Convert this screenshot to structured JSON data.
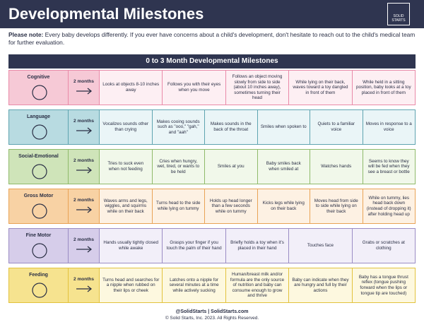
{
  "header": {
    "title": "Developmental Milestones",
    "logo_top": "SOLID",
    "logo_bottom": "STARTS"
  },
  "note": {
    "label": "Please note:",
    "text": "Every baby develops differently. If you ever have concerns about a child's development, don't hesitate to reach out to the child's medical team for further evaluation."
  },
  "table": {
    "title": "0 to 3 Month Developmental Milestones",
    "rows": [
      {
        "category": "Cognitive",
        "age": "2 months",
        "cells": [
          "Looks at objects 8-10 inches away",
          "Follows you with their eyes when you move",
          "Follows an object moving slowly from side to side (about 10 inches away), sometimes turning their head",
          "While lying on their back, waves toward a toy dangled in front of them",
          "While held in a sitting position, baby looks at a toy placed in front of them"
        ]
      },
      {
        "category": "Language",
        "age": "2 months",
        "cells": [
          "Vocalizes sounds other than crying",
          "Makes cooing sounds such as \"ooo,\" \"gah,\" and \"aah\"",
          "Makes sounds in the back of the throat",
          "Smiles when spoken to",
          "Quiets to a familiar voice",
          "Moves in response to a voice"
        ]
      },
      {
        "category": "Social-Emotional",
        "age": "2 months",
        "cells": [
          "Tries to suck even when not feeding",
          "Cries when hungry, wet, tired, or wants to be held",
          "Smiles at you",
          "Baby smiles back when smiled at",
          "Watches hands",
          "Seems to know they will be fed when they see a breast or bottle"
        ]
      },
      {
        "category": "Gross Motor",
        "age": "2 months",
        "cells": [
          "Waves arms and legs, wiggles, and squirms while on their back",
          "Turns head to the side while lying on tummy",
          "Holds up head longer than a few seconds while on tummy",
          "Kicks legs while lying on their back",
          "Moves head from side to side while lying on their back",
          "While on tummy, lies head back down (instead of dropping it) after holding head up"
        ]
      },
      {
        "category": "Fine Motor",
        "age": "2 months",
        "cells": [
          "Hands usually tightly closed while awake",
          "Grasps your finger if you touch the palm of their hand",
          "Briefly holds a toy when it's placed in their hand",
          "Touches face",
          "Grabs or scratches at clothing"
        ]
      },
      {
        "category": "Feeding",
        "age": "2 months",
        "cells": [
          "Turns head and searches for a nipple when rubbed on their lips or cheek",
          "Latches onto a nipple for several minutes at a time while actively sucking",
          "Human/breast milk and/or formula are the only source of nutrition and baby can consume enough to grow and thrive",
          "Baby can indicate when they are hungry and full by their actions",
          "Baby has a tongue thrust reflex (tongue pushing forward when the lips or tongue tip are touched)"
        ]
      }
    ]
  },
  "footer": {
    "line1": "@SolidStarts | SolidStarts.com",
    "line2": "© Solid Starts, Inc. 2023. All Rights Reserved."
  }
}
